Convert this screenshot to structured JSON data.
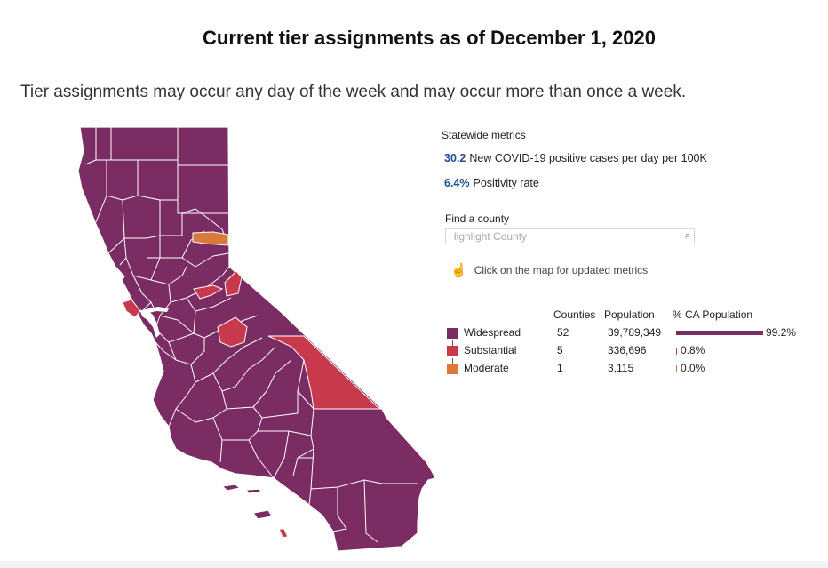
{
  "header": {
    "title": "Current tier assignments as of December 1, 2020",
    "subtitle": "Tier assignments may occur any day of the week and may occur more than once a week."
  },
  "colors": {
    "widespread": "#7b2d63",
    "substantial": "#c8394e",
    "moderate": "#d9793a",
    "metric_value": "#1f4e9a",
    "county_border": "#ffffff"
  },
  "metrics": {
    "heading": "Statewide metrics",
    "items": [
      {
        "value": "30.2",
        "label": "New COVID-19 positive cases per day per 100K"
      },
      {
        "value": "6.4%",
        "label": "Positivity rate"
      }
    ]
  },
  "search": {
    "label": "Find a county",
    "placeholder": "Highlight County",
    "icon": "search-icon"
  },
  "hint": {
    "icon": "pointer-hand-icon",
    "text": "Click on the map for updated metrics"
  },
  "legend": {
    "headers": {
      "counties": "Counties",
      "population": "Population",
      "pct": "% CA Population"
    },
    "rows": [
      {
        "tier": "Widespread",
        "color": "#7b2d63",
        "counties": "52",
        "population": "39,789,349",
        "pct_label": "99.2%",
        "pct": 99.2
      },
      {
        "tier": "Substantial",
        "color": "#c8394e",
        "counties": "5",
        "population": "336,696",
        "pct_label": "0.8%",
        "pct": 0.8
      },
      {
        "tier": "Moderate",
        "color": "#d9793a",
        "counties": "1",
        "population": "3,115",
        "pct_label": "0.0%",
        "pct": 0.0
      }
    ]
  }
}
